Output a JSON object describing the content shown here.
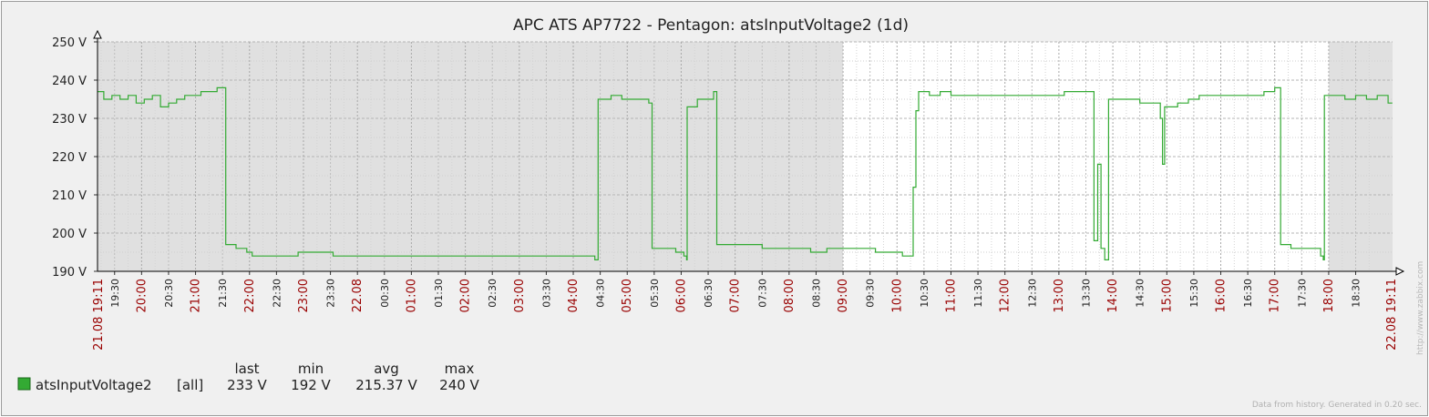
{
  "chart_data": {
    "type": "line",
    "title": "APC ATS AP7722 - Pentagon: atsInputVoltage2 (1d)",
    "y_unit": "V",
    "ylim": [
      190,
      250
    ],
    "y_ticks": [
      "190 V",
      "200 V",
      "210 V",
      "220 V",
      "230 V",
      "240 V",
      "250 V"
    ],
    "x_start": "21.08 19:11",
    "x_end": "22.08 19:11",
    "x_ticks": [
      {
        "label": "19:30",
        "hour": 19.5,
        "major": false
      },
      {
        "label": "20:00",
        "hour": 20,
        "major": true
      },
      {
        "label": "20:30",
        "hour": 20.5,
        "major": false
      },
      {
        "label": "21:00",
        "hour": 21,
        "major": true
      },
      {
        "label": "21:30",
        "hour": 21.5,
        "major": false
      },
      {
        "label": "22:00",
        "hour": 22,
        "major": true
      },
      {
        "label": "22:30",
        "hour": 22.5,
        "major": false
      },
      {
        "label": "23:00",
        "hour": 23,
        "major": true
      },
      {
        "label": "23:30",
        "hour": 23.5,
        "major": false
      },
      {
        "label": "22.08",
        "hour": 24,
        "major": true
      },
      {
        "label": "00:30",
        "hour": 24.5,
        "major": false
      },
      {
        "label": "01:00",
        "hour": 25,
        "major": true
      },
      {
        "label": "01:30",
        "hour": 25.5,
        "major": false
      },
      {
        "label": "02:00",
        "hour": 26,
        "major": true
      },
      {
        "label": "02:30",
        "hour": 26.5,
        "major": false
      },
      {
        "label": "03:00",
        "hour": 27,
        "major": true
      },
      {
        "label": "03:30",
        "hour": 27.5,
        "major": false
      },
      {
        "label": "04:00",
        "hour": 28,
        "major": true
      },
      {
        "label": "04:30",
        "hour": 28.5,
        "major": false
      },
      {
        "label": "05:00",
        "hour": 29,
        "major": true
      },
      {
        "label": "05:30",
        "hour": 29.5,
        "major": false
      },
      {
        "label": "06:00",
        "hour": 30,
        "major": true
      },
      {
        "label": "06:30",
        "hour": 30.5,
        "major": false
      },
      {
        "label": "07:00",
        "hour": 31,
        "major": true
      },
      {
        "label": "07:30",
        "hour": 31.5,
        "major": false
      },
      {
        "label": "08:00",
        "hour": 32,
        "major": true
      },
      {
        "label": "08:30",
        "hour": 32.5,
        "major": false
      },
      {
        "label": "09:00",
        "hour": 33,
        "major": true
      },
      {
        "label": "09:30",
        "hour": 33.5,
        "major": false
      },
      {
        "label": "10:00",
        "hour": 34,
        "major": true
      },
      {
        "label": "10:30",
        "hour": 34.5,
        "major": false
      },
      {
        "label": "11:00",
        "hour": 35,
        "major": true
      },
      {
        "label": "11:30",
        "hour": 35.5,
        "major": false
      },
      {
        "label": "12:00",
        "hour": 36,
        "major": true
      },
      {
        "label": "12:30",
        "hour": 36.5,
        "major": false
      },
      {
        "label": "13:00",
        "hour": 37,
        "major": true
      },
      {
        "label": "13:30",
        "hour": 37.5,
        "major": false
      },
      {
        "label": "14:00",
        "hour": 38,
        "major": true
      },
      {
        "label": "14:30",
        "hour": 38.5,
        "major": false
      },
      {
        "label": "15:00",
        "hour": 39,
        "major": true
      },
      {
        "label": "15:30",
        "hour": 39.5,
        "major": false
      },
      {
        "label": "16:00",
        "hour": 40,
        "major": true
      },
      {
        "label": "16:30",
        "hour": 40.5,
        "major": false
      },
      {
        "label": "17:00",
        "hour": 41,
        "major": true
      },
      {
        "label": "17:30",
        "hour": 41.5,
        "major": false
      },
      {
        "label": "18:00",
        "hour": 42,
        "major": true
      },
      {
        "label": "18:30",
        "hour": 42.5,
        "major": false
      }
    ],
    "x_range_hours": [
      19.1833,
      43.1833
    ],
    "working_hours": [
      33,
      42
    ],
    "series": [
      {
        "name": "atsInputVoltage2",
        "color": "#33aa33",
        "points": [
          [
            19.18,
            237
          ],
          [
            19.3,
            235
          ],
          [
            19.45,
            236
          ],
          [
            19.6,
            235
          ],
          [
            19.75,
            236
          ],
          [
            19.9,
            234
          ],
          [
            20.05,
            235
          ],
          [
            20.2,
            236
          ],
          [
            20.35,
            233
          ],
          [
            20.5,
            234
          ],
          [
            20.65,
            235
          ],
          [
            20.8,
            236
          ],
          [
            20.95,
            236
          ],
          [
            21.1,
            237
          ],
          [
            21.25,
            237
          ],
          [
            21.4,
            238
          ],
          [
            21.55,
            238
          ],
          [
            21.56,
            197
          ],
          [
            21.75,
            196
          ],
          [
            21.95,
            195
          ],
          [
            22.05,
            194
          ],
          [
            22.3,
            194
          ],
          [
            22.6,
            194
          ],
          [
            22.9,
            195
          ],
          [
            23.2,
            195
          ],
          [
            23.5,
            195
          ],
          [
            23.55,
            194
          ],
          [
            23.9,
            194
          ],
          [
            24.3,
            194
          ],
          [
            24.7,
            194
          ],
          [
            25.1,
            194
          ],
          [
            25.5,
            194
          ],
          [
            25.9,
            194
          ],
          [
            26.3,
            194
          ],
          [
            26.7,
            194
          ],
          [
            27.1,
            194
          ],
          [
            27.5,
            194
          ],
          [
            27.9,
            194
          ],
          [
            28.2,
            194
          ],
          [
            28.4,
            193
          ],
          [
            28.45,
            193
          ],
          [
            28.46,
            235
          ],
          [
            28.7,
            236
          ],
          [
            28.9,
            235
          ],
          [
            29.1,
            235
          ],
          [
            29.4,
            234
          ],
          [
            29.45,
            234
          ],
          [
            29.46,
            196
          ],
          [
            29.7,
            196
          ],
          [
            29.9,
            195
          ],
          [
            30.05,
            194
          ],
          [
            30.1,
            193
          ],
          [
            30.11,
            233
          ],
          [
            30.3,
            235
          ],
          [
            30.5,
            235
          ],
          [
            30.6,
            237
          ],
          [
            30.65,
            237
          ],
          [
            30.66,
            197
          ],
          [
            30.9,
            197
          ],
          [
            31.2,
            197
          ],
          [
            31.5,
            196
          ],
          [
            31.8,
            196
          ],
          [
            32.1,
            196
          ],
          [
            32.4,
            195
          ],
          [
            32.7,
            196
          ],
          [
            33.0,
            196
          ],
          [
            33.3,
            196
          ],
          [
            33.6,
            195
          ],
          [
            33.9,
            195
          ],
          [
            34.1,
            194
          ],
          [
            34.2,
            194
          ],
          [
            34.3,
            212
          ],
          [
            34.35,
            232
          ],
          [
            34.4,
            237
          ],
          [
            34.6,
            236
          ],
          [
            34.8,
            237
          ],
          [
            35.0,
            236
          ],
          [
            35.3,
            236
          ],
          [
            35.6,
            236
          ],
          [
            35.9,
            236
          ],
          [
            36.2,
            236
          ],
          [
            36.5,
            236
          ],
          [
            36.8,
            236
          ],
          [
            37.1,
            237
          ],
          [
            37.4,
            237
          ],
          [
            37.6,
            237
          ],
          [
            37.65,
            198
          ],
          [
            37.72,
            218
          ],
          [
            37.78,
            196
          ],
          [
            37.85,
            193
          ],
          [
            37.9,
            193
          ],
          [
            37.92,
            235
          ],
          [
            38.1,
            235
          ],
          [
            38.3,
            235
          ],
          [
            38.5,
            234
          ],
          [
            38.75,
            234
          ],
          [
            38.88,
            230
          ],
          [
            38.92,
            218
          ],
          [
            38.96,
            233
          ],
          [
            39.2,
            234
          ],
          [
            39.4,
            235
          ],
          [
            39.6,
            236
          ],
          [
            39.9,
            236
          ],
          [
            40.2,
            236
          ],
          [
            40.5,
            236
          ],
          [
            40.8,
            237
          ],
          [
            41.0,
            238
          ],
          [
            41.1,
            238
          ],
          [
            41.11,
            197
          ],
          [
            41.3,
            196
          ],
          [
            41.5,
            196
          ],
          [
            41.7,
            196
          ],
          [
            41.85,
            194
          ],
          [
            41.9,
            193
          ],
          [
            41.92,
            236
          ],
          [
            42.1,
            236
          ],
          [
            42.3,
            235
          ],
          [
            42.5,
            236
          ],
          [
            42.7,
            235
          ],
          [
            42.9,
            236
          ],
          [
            43.1,
            234
          ],
          [
            43.18,
            234
          ]
        ]
      }
    ],
    "legend": {
      "columns": [
        "last",
        "min",
        "avg",
        "max"
      ],
      "rows": [
        {
          "name": "atsInputVoltage2",
          "scope": "[all]",
          "last": "233 V",
          "min": "192 V",
          "avg": "215.37 V",
          "max": "240 V",
          "color": "#33aa33"
        }
      ]
    },
    "footer_note": "Data from history. Generated in 0.20 sec.",
    "watermark": "http://www.zabbix.com"
  },
  "colors": {
    "frame_bg": "#f0f0f0",
    "plot_bg": "#e0e0e0",
    "work_bg": "#ffffff",
    "major_label": "#990000",
    "minor_label": "#222222"
  }
}
